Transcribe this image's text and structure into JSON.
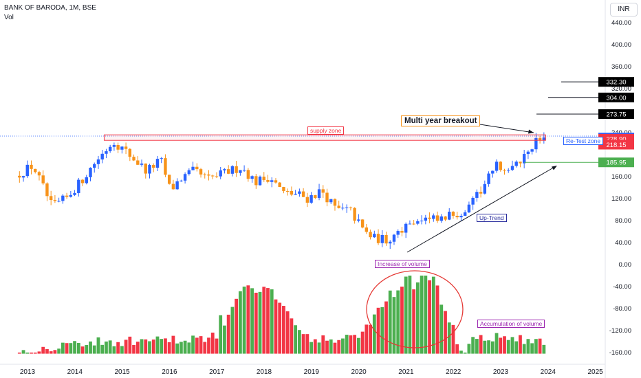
{
  "header": {
    "symbol": "BANK OF BARODA, 1M, BSE",
    "indicator": "Vol"
  },
  "currency_button": "INR",
  "colors": {
    "up": "#2962ff",
    "down": "#f7931a",
    "vol_up": "#4caf50",
    "vol_down": "#f23645",
    "zone": "#f23645",
    "ellipse": "#e53935"
  },
  "chart_data": {
    "type": "candlestick",
    "price_axis_ticks": [
      "440.00",
      "400.00",
      "360.00",
      "320.00",
      "240.00",
      "160.00",
      "120.00",
      "80.00",
      "40.00",
      "0.00",
      "-40.00",
      "-80.00",
      "-120.00",
      "-160.00"
    ],
    "time_axis_ticks": [
      "2013",
      "2014",
      "2015",
      "2016",
      "2017",
      "2018",
      "2019",
      "2020",
      "2021",
      "2022",
      "2023",
      "2024",
      "2025"
    ],
    "price_badges": [
      {
        "label": "332.30",
        "value": 332.3,
        "color": "#000000"
      },
      {
        "label": "304.00",
        "value": 304.0,
        "color": "#000000"
      },
      {
        "label": "273.75",
        "value": 273.75,
        "color": "#000000"
      },
      {
        "label": "231.10",
        "value": 231.1,
        "color": "#2962ff"
      },
      {
        "label": "228.90",
        "value": 228.9,
        "color": "#f23645"
      },
      {
        "label": "218.15",
        "value": 218.15,
        "color": "#f23645"
      },
      {
        "label": "185.95",
        "value": 185.95,
        "color": "#4caf50"
      }
    ],
    "annotations": {
      "supply_zone": "supply zone",
      "multi_year_breakout": "Multi year breakout",
      "retest_zone": "Re-Test zone",
      "uptrend": "Up-Trend",
      "increase_of_volume": "Increase of volume",
      "accumulation_of_volume": "Accumulation of volume"
    },
    "supply_zone_range": [
      226,
      236
    ],
    "series_note": "monthly price swings 2013-2024",
    "price_path": [
      [
        2012.8,
        160
      ],
      [
        2013.2,
        180
      ],
      [
        2013.6,
        105
      ],
      [
        2013.9,
        120
      ],
      [
        2014.2,
        150
      ],
      [
        2014.5,
        185
      ],
      [
        2014.9,
        225
      ],
      [
        2015.3,
        195
      ],
      [
        2015.6,
        170
      ],
      [
        2015.9,
        190
      ],
      [
        2016.1,
        135
      ],
      [
        2016.3,
        155
      ],
      [
        2016.6,
        170
      ],
      [
        2016.9,
        155
      ],
      [
        2017.2,
        165
      ],
      [
        2017.6,
        178
      ],
      [
        2017.9,
        150
      ],
      [
        2018.2,
        160
      ],
      [
        2018.5,
        130
      ],
      [
        2018.8,
        128
      ],
      [
        2019.0,
        120
      ],
      [
        2019.3,
        135
      ],
      [
        2019.6,
        100
      ],
      [
        2019.9,
        98
      ],
      [
        2020.2,
        60
      ],
      [
        2020.4,
        48
      ],
      [
        2020.7,
        45
      ],
      [
        2020.9,
        60
      ],
      [
        2021.2,
        80
      ],
      [
        2021.5,
        82
      ],
      [
        2021.8,
        80
      ],
      [
        2022.1,
        92
      ],
      [
        2022.4,
        100
      ],
      [
        2022.7,
        140
      ],
      [
        2023.0,
        180
      ],
      [
        2023.3,
        170
      ],
      [
        2023.6,
        200
      ],
      [
        2023.9,
        230
      ],
      [
        2024.0,
        225
      ]
    ],
    "volume_profile": [
      [
        2013.0,
        -157
      ],
      [
        2014.0,
        -142
      ],
      [
        2015.0,
        -140
      ],
      [
        2016.0,
        -138
      ],
      [
        2017.0,
        -130
      ],
      [
        2017.6,
        -40
      ],
      [
        2018.2,
        -50
      ],
      [
        2019.0,
        -140
      ],
      [
        2020.0,
        -130
      ],
      [
        2021.0,
        -15
      ],
      [
        2021.6,
        -40
      ],
      [
        2022.2,
        -140
      ],
      [
        2023.0,
        -132
      ],
      [
        2023.8,
        -140
      ]
    ]
  }
}
